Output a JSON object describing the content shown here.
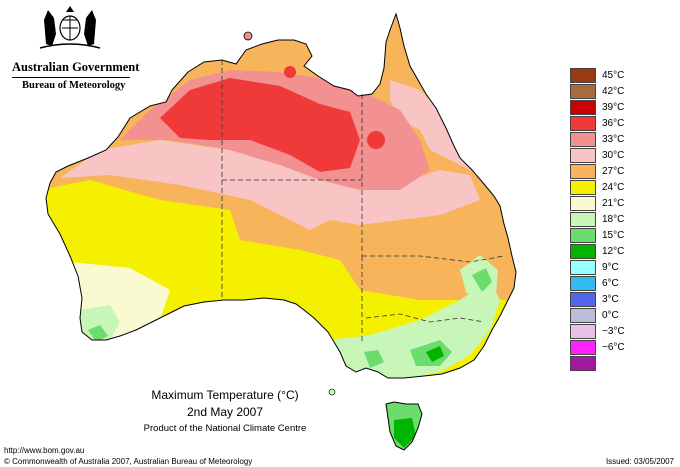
{
  "header": {
    "government": "Australian Government",
    "bureau": "Bureau of Meteorology"
  },
  "caption": {
    "title": "Maximum Temperature (°C)",
    "date": "2nd May 2007",
    "subtitle": "Product of the National Climate Centre"
  },
  "legend": [
    {
      "label": "45°C",
      "color": "#9a3a10"
    },
    {
      "label": "42°C",
      "color": "#a86a3e"
    },
    {
      "label": "39°C",
      "color": "#cc0000"
    },
    {
      "label": "36°C",
      "color": "#f03a3a"
    },
    {
      "label": "33°C",
      "color": "#f39090"
    },
    {
      "label": "30°C",
      "color": "#f8c4c4"
    },
    {
      "label": "27°C",
      "color": "#f7b45a"
    },
    {
      "label": "24°C",
      "color": "#f5f000"
    },
    {
      "label": "21°C",
      "color": "#fafad0"
    },
    {
      "label": "18°C",
      "color": "#c8f5b8"
    },
    {
      "label": "15°C",
      "color": "#6cdc6c"
    },
    {
      "label": "12°C",
      "color": "#00b400"
    },
    {
      "label": "9°C",
      "color": "#99ffff"
    },
    {
      "label": "6°C",
      "color": "#33bbee"
    },
    {
      "label": "3°C",
      "color": "#5566ee"
    },
    {
      "label": "0°C",
      "color": "#bcbcd8"
    },
    {
      "label": "−3°C",
      "color": "#e8c0e8"
    },
    {
      "label": "−6°C",
      "color": "#ff22ff"
    },
    {
      "label": "",
      "color": "#a01aa0"
    }
  ],
  "footer": {
    "url": "http://www.bom.gov.au",
    "copyright": "© Commonwealth of Australia 2007, Australian Bureau of Meteorology",
    "issued": "Issued: 03/05/2007"
  },
  "map": {
    "land_color": "#f7b45a",
    "outline_color": "#000000"
  }
}
